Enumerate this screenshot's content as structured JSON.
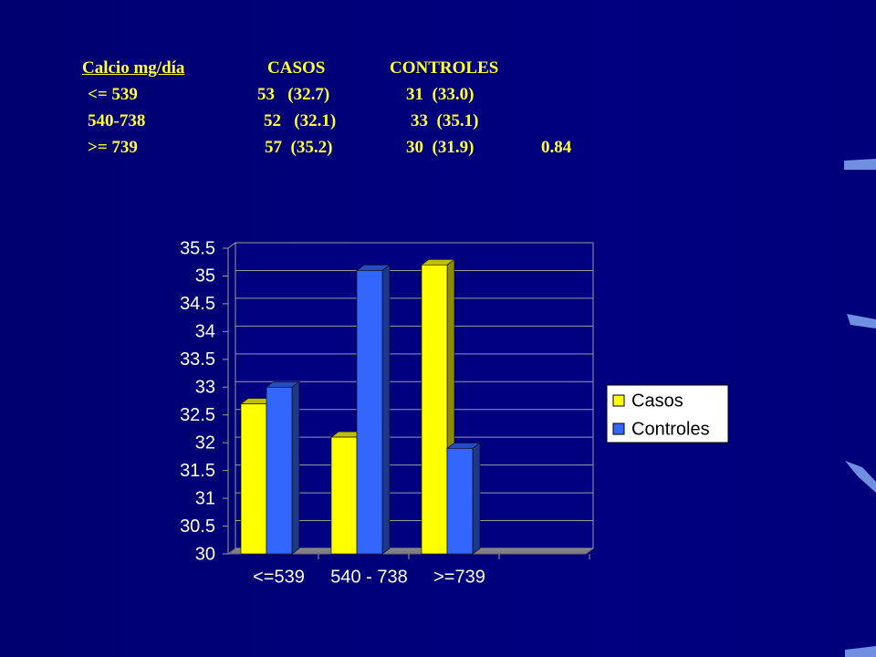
{
  "table": {
    "header": [
      "Calcio mg/día",
      "CASOS",
      "CONTROLES"
    ],
    "rows": [
      [
        "<= 539",
        "53   (32.7)",
        "31  (33.0)"
      ],
      [
        "540-738",
        "52   (32.1)",
        "33  (35.1)"
      ],
      [
        ">= 739",
        "57  (35.2)",
        "30  (31.9)",
        "0.84"
      ]
    ]
  },
  "chart_data": {
    "type": "bar",
    "categories": [
      "<=539",
      "540 - 738",
      ">=739",
      null
    ],
    "series": [
      {
        "name": "Casos",
        "color": "#ffff00",
        "values": [
          32.7,
          32.1,
          35.2,
          null
        ]
      },
      {
        "name": "Controles",
        "color": "#3366ff",
        "values": [
          33.0,
          35.1,
          31.9,
          null
        ]
      }
    ],
    "ylim": [
      30,
      35.5
    ],
    "yticks": [
      30,
      30.5,
      31,
      31.5,
      32,
      32.5,
      33,
      33.5,
      34,
      34.5,
      35,
      35.5
    ],
    "grid": true,
    "legend": "right"
  }
}
